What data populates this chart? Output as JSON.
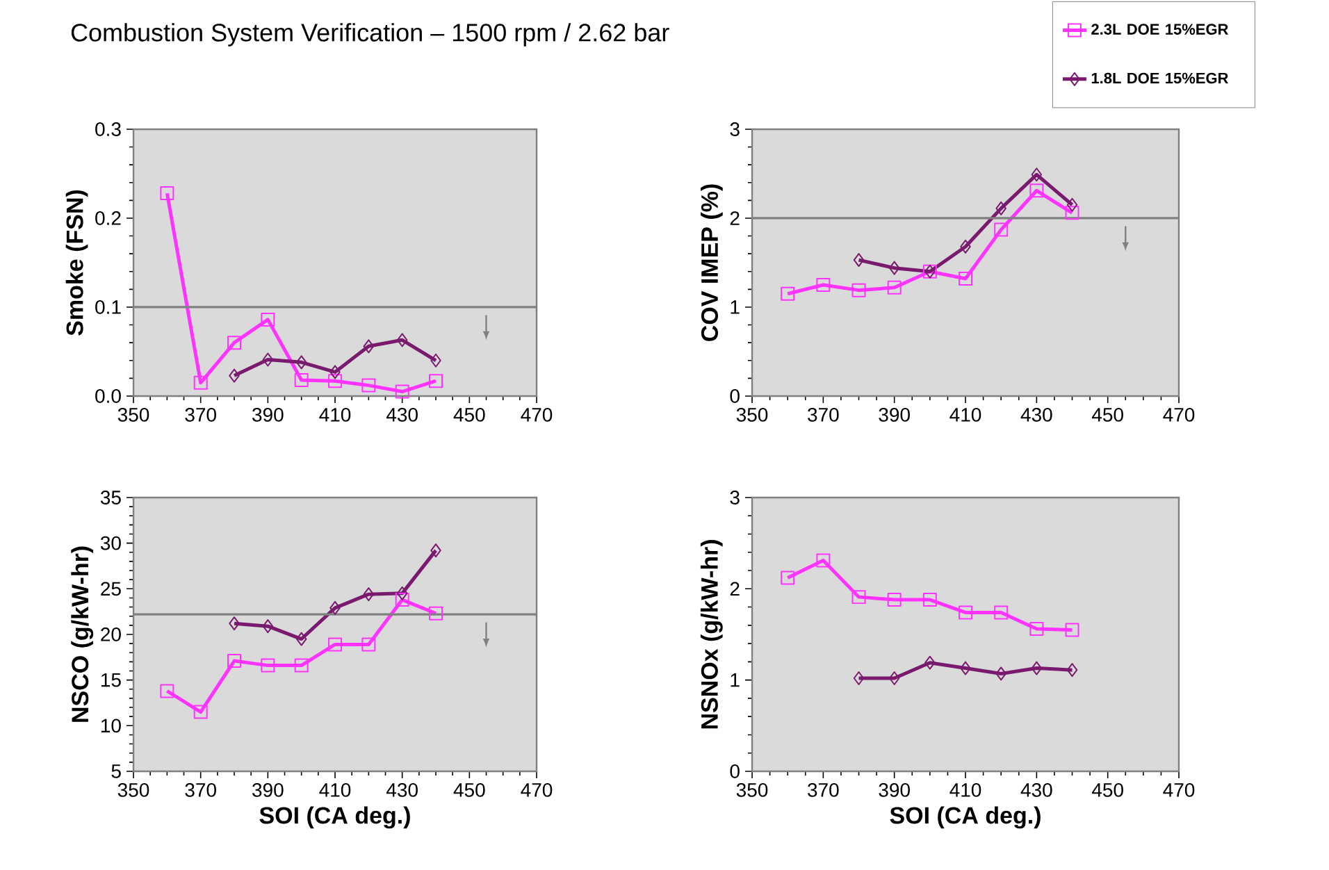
{
  "chart_data": [
    {
      "type": "line",
      "title": "Combustion System Verification – 1500 rpm / 2.62 bar",
      "ylabel": "Smoke (FSN)",
      "xlim": [
        350,
        470
      ],
      "xticks": [
        350,
        370,
        390,
        410,
        430,
        450,
        470
      ],
      "ylim": [
        0,
        0.3
      ],
      "yticks": [
        {
          "value": 0,
          "label": "0.0"
        },
        0.1,
        0.2,
        0.3
      ],
      "line_style": "solid",
      "ref_lines": [
        {
          "axis": "y",
          "value": 0.1,
          "color": "#808080"
        }
      ],
      "series": [
        {
          "color": "#ff33ff",
          "marker": "square",
          "x": [
            360,
            370,
            380,
            390,
            400,
            410,
            420,
            430,
            440
          ],
          "values": [
            0.228,
            0.015,
            0.06,
            0.086,
            0.018,
            0.017,
            0.012,
            0.005,
            0.017
          ]
        },
        {
          "color": "#7a1a6e",
          "marker": "diamond",
          "x": [
            380,
            390,
            400,
            410,
            420,
            430,
            440
          ],
          "values": [
            0.023,
            0.041,
            0.038,
            0.027,
            0.056,
            0.063,
            0.04
          ]
        }
      ]
    },
    {
      "type": "line",
      "ylabel": "COV IMEP (%)",
      "xlim": [
        350,
        470
      ],
      "xticks": [
        350,
        370,
        390,
        410,
        430,
        450,
        470
      ],
      "ylim": [
        0,
        3
      ],
      "yticks": [
        0,
        1,
        2,
        3
      ],
      "line_style": "solid",
      "legend": "top right",
      "ref_lines": [
        {
          "axis": "y",
          "value": 2.0,
          "color": "#808080"
        }
      ],
      "series": [
        {
          "name": "2.3L DOE 15%EGR",
          "color": "#ff33ff",
          "marker": "square",
          "x": [
            360,
            370,
            380,
            390,
            400,
            410,
            420,
            430,
            440
          ],
          "values": [
            1.15,
            1.25,
            1.19,
            1.22,
            1.4,
            1.32,
            1.87,
            2.31,
            2.06
          ]
        },
        {
          "name": "1.8L DOE 15%EGR",
          "color": "#7a1a6e",
          "marker": "diamond",
          "x": [
            380,
            390,
            400,
            410,
            420,
            430,
            440
          ],
          "values": [
            1.53,
            1.44,
            1.4,
            1.68,
            2.11,
            2.49,
            2.15
          ]
        }
      ]
    },
    {
      "type": "line",
      "xlabel": "SOI (CA deg.)",
      "ylabel": "NSCO (g/kW-hr)",
      "xlim": [
        350,
        470
      ],
      "xticks": [
        350,
        370,
        390,
        410,
        430,
        450,
        470
      ],
      "ylim": [
        5,
        35
      ],
      "yticks": [
        5,
        10,
        15,
        20,
        25,
        30,
        35
      ],
      "line_style": "solid",
      "ref_lines": [
        {
          "axis": "y",
          "value": 22.2,
          "color": "#808080"
        }
      ],
      "series": [
        {
          "color": "#ff33ff",
          "marker": "square",
          "x": [
            360,
            370,
            380,
            390,
            400,
            410,
            420,
            430,
            440
          ],
          "values": [
            13.8,
            11.5,
            17.1,
            16.6,
            16.6,
            18.9,
            18.9,
            23.8,
            22.3
          ]
        },
        {
          "color": "#7a1a6e",
          "marker": "diamond",
          "x": [
            380,
            390,
            400,
            410,
            420,
            430,
            440
          ],
          "values": [
            21.2,
            20.9,
            19.5,
            22.9,
            24.4,
            24.5,
            29.2
          ]
        }
      ]
    },
    {
      "type": "line",
      "xlabel": "SOI (CA deg.)",
      "ylabel": "NSNOx (g/kW-hr)",
      "xlim": [
        350,
        470
      ],
      "xticks": [
        350,
        370,
        390,
        410,
        430,
        450,
        470
      ],
      "ylim": [
        0,
        3
      ],
      "yticks": [
        0,
        1,
        2,
        3
      ],
      "line_style": "solid",
      "series": [
        {
          "color": "#ff33ff",
          "marker": "square",
          "x": [
            360,
            370,
            380,
            390,
            400,
            410,
            420,
            430,
            440
          ],
          "values": [
            2.12,
            2.31,
            1.91,
            1.88,
            1.88,
            1.74,
            1.74,
            1.56,
            1.55
          ]
        },
        {
          "color": "#7a1a6e",
          "marker": "diamond",
          "x": [
            380,
            390,
            400,
            410,
            420,
            430,
            440
          ],
          "values": [
            1.02,
            1.02,
            1.19,
            1.13,
            1.07,
            1.13,
            1.11
          ]
        }
      ]
    }
  ]
}
